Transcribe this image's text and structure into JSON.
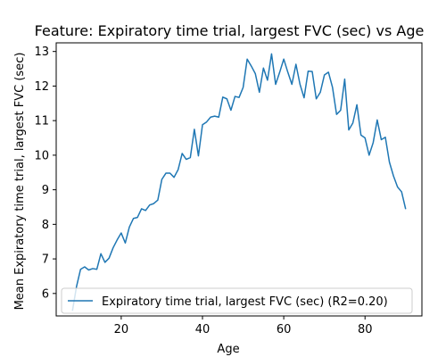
{
  "chart_data": {
    "type": "line",
    "title": "Feature: Expiratory time trial, largest FVC (sec) vs Age",
    "xlabel": "Age",
    "ylabel": "Mean Expiratory time trial, largest FVC (sec)",
    "xlim": [
      4,
      94
    ],
    "ylim": [
      5.35,
      13.25
    ],
    "x_ticks": [
      20,
      40,
      60,
      80
    ],
    "y_ticks": [
      6,
      7,
      8,
      9,
      10,
      11,
      12,
      13
    ],
    "grid": false,
    "legend_position": "lower right",
    "series": [
      {
        "name": "Expiratory time trial, largest FVC (sec) (R2=0.20)",
        "color": "#1f77b4",
        "x": [
          8,
          9,
          10,
          11,
          12,
          13,
          14,
          15,
          16,
          17,
          18,
          19,
          20,
          21,
          22,
          23,
          24,
          25,
          26,
          27,
          28,
          29,
          30,
          31,
          32,
          33,
          34,
          35,
          36,
          37,
          38,
          39,
          40,
          41,
          42,
          43,
          44,
          45,
          46,
          47,
          48,
          49,
          50,
          51,
          52,
          53,
          54,
          55,
          56,
          57,
          58,
          59,
          60,
          61,
          62,
          63,
          64,
          65,
          66,
          67,
          68,
          69,
          70,
          71,
          72,
          73,
          74,
          75,
          76,
          77,
          78,
          79,
          80,
          81,
          82,
          83,
          84,
          85,
          86,
          87,
          88,
          89,
          90
        ],
        "values": [
          5.5,
          6.2,
          6.7,
          6.77,
          6.68,
          6.72,
          6.7,
          7.15,
          6.9,
          7.02,
          7.32,
          7.55,
          7.75,
          7.46,
          7.92,
          8.17,
          8.2,
          8.45,
          8.4,
          8.56,
          8.6,
          8.7,
          9.3,
          9.48,
          9.48,
          9.36,
          9.58,
          10.05,
          9.88,
          9.93,
          10.75,
          9.98,
          10.88,
          10.96,
          11.1,
          11.13,
          11.1,
          11.68,
          11.63,
          11.3,
          11.7,
          11.67,
          11.96,
          12.78,
          12.58,
          12.36,
          11.82,
          12.52,
          12.17,
          12.93,
          12.05,
          12.4,
          12.78,
          12.4,
          12.05,
          12.63,
          12.05,
          11.66,
          12.43,
          12.42,
          11.63,
          11.82,
          12.32,
          12.4,
          11.96,
          11.18,
          11.3,
          12.2,
          10.73,
          10.93,
          11.46,
          10.58,
          10.5,
          10.0,
          10.36,
          11.02,
          10.45,
          10.52,
          9.8,
          9.4,
          9.08,
          8.94,
          8.44
        ]
      }
    ]
  }
}
